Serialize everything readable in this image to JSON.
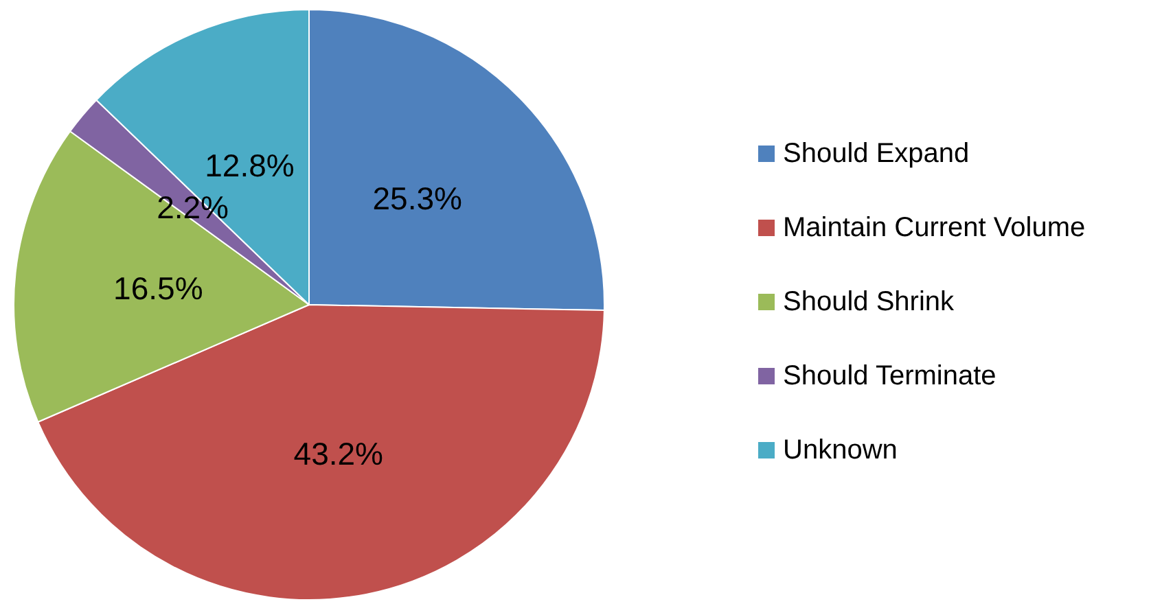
{
  "chart_data": {
    "type": "pie",
    "categories": [
      "Should Expand",
      "Maintain Current Volume",
      "Should Shrink",
      "Should Terminate",
      "Unknown"
    ],
    "values": [
      25.3,
      43.2,
      16.5,
      2.2,
      12.8
    ],
    "value_labels": [
      "25.3%",
      "43.2%",
      "16.5%",
      "2.2%",
      "12.8%"
    ],
    "colors": [
      "#4f81bd",
      "#c0504d",
      "#9bbb59",
      "#8064a2",
      "#4bacc6"
    ],
    "legend": "right"
  }
}
